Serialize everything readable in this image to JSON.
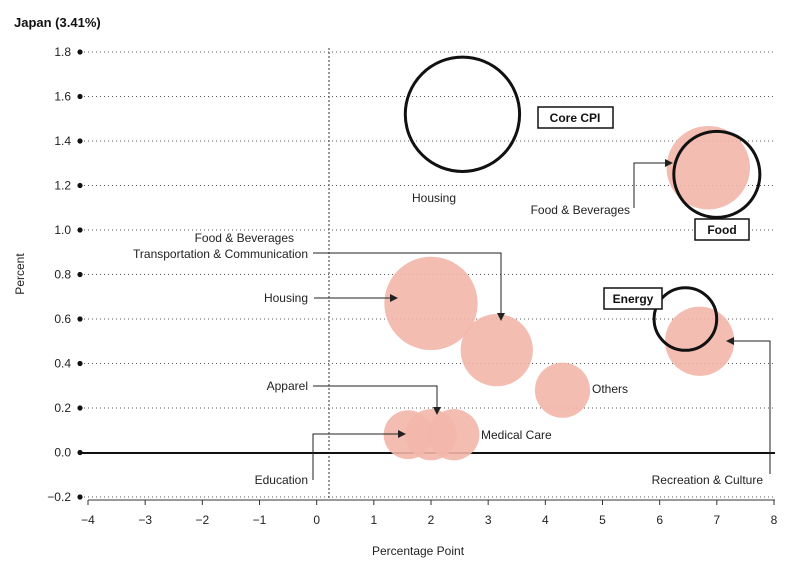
{
  "chart_data": {
    "type": "scatter",
    "title": "Japan (3.41%)",
    "xlabel": "Percentage Point",
    "ylabel": "Percent",
    "xlim": [
      -4,
      8
    ],
    "ylim": [
      -0.2,
      1.8
    ],
    "xticks": [
      -4,
      -3,
      -2,
      -1,
      0,
      1,
      2,
      3,
      4,
      5,
      6,
      7,
      8
    ],
    "yticks": [
      -0.2,
      0.0,
      0.2,
      0.4,
      0.6,
      0.8,
      1.0,
      1.2,
      1.4,
      1.6,
      1.8
    ],
    "xtick_labels": [
      "−4",
      "−3",
      "−2",
      "−1",
      "0",
      "1",
      "2",
      "3",
      "4",
      "5",
      "6",
      "7",
      "8"
    ],
    "ytick_labels": [
      "−0.2",
      "0.0",
      "0.2",
      "0.4",
      "0.6",
      "0.8",
      "1.0",
      "1.2",
      "1.4",
      "1.6",
      "1.8"
    ],
    "fill_color": "#f3b6aa",
    "outline_color": "#111111",
    "points": [
      {
        "name": "Housing",
        "x": 2.0,
        "y": 0.67,
        "size": 2.0,
        "style": "filled"
      },
      {
        "name": "Transportation & Communication",
        "x": 3.15,
        "y": 0.46,
        "size": 1.2,
        "style": "filled"
      },
      {
        "name": "Others",
        "x": 4.3,
        "y": 0.28,
        "size": 0.7,
        "style": "filled"
      },
      {
        "name": "Education",
        "x": 1.6,
        "y": 0.08,
        "size": 0.55,
        "style": "filled"
      },
      {
        "name": "Apparel",
        "x": 2.0,
        "y": 0.08,
        "size": 0.6,
        "style": "filled"
      },
      {
        "name": "Medical Care",
        "x": 2.4,
        "y": 0.08,
        "size": 0.6,
        "style": "filled"
      },
      {
        "name": "Food & Beverages",
        "x": 6.85,
        "y": 1.28,
        "size": 1.6,
        "style": "filled"
      },
      {
        "name": "Recreation & Culture",
        "x": 6.7,
        "y": 0.5,
        "size": 1.1,
        "style": "filled"
      },
      {
        "name": "Core CPI",
        "x": 2.55,
        "y": 1.52,
        "size": 3.0,
        "style": "outline"
      },
      {
        "name": "Food",
        "x": 7.0,
        "y": 1.25,
        "size": 1.7,
        "style": "outline"
      },
      {
        "name": "Energy",
        "x": 6.45,
        "y": 0.6,
        "size": 0.9,
        "style": "outline"
      }
    ],
    "annotations": {
      "housing_inner": "Housing",
      "food_bev_right": "Food & Beverages",
      "food_bev_left": "Food & Beverages",
      "transport": "Transportation & Communication",
      "housing_left": "Housing",
      "apparel": "Apparel",
      "others": "Others",
      "medical": "Medical Care",
      "education": "Education",
      "recreation": "Recreation & Culture"
    },
    "boxed_labels": {
      "core": "Core CPI",
      "food": "Food",
      "energy": "Energy"
    }
  }
}
